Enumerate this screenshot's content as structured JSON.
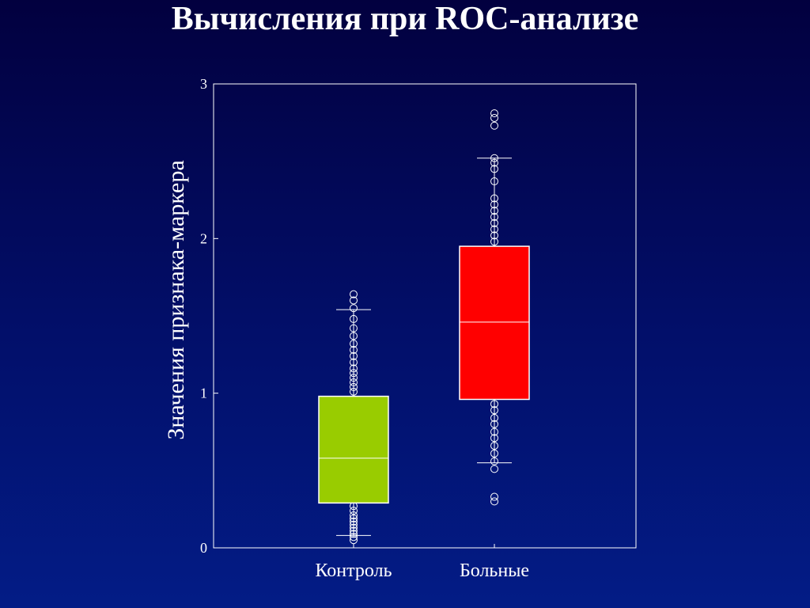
{
  "slide": {
    "title": "Вычисления при ROC-анализе"
  },
  "colors": {
    "background_top": "#02003f",
    "background_bottom": "#031c86",
    "control_box": "#99cc00",
    "patients_box": "#ff0000",
    "lines": "#ffffff"
  },
  "chart_data": {
    "type": "box",
    "title": "",
    "xlabel": "",
    "ylabel": "Значения признака-маркера",
    "ylim": [
      0,
      3
    ],
    "yticks": [
      0,
      1,
      2,
      3
    ],
    "grid": false,
    "categories": [
      "Контроль",
      "Больные"
    ],
    "series": [
      {
        "name": "Контроль",
        "color": "#99cc00",
        "whisker_low": 0.08,
        "q1": 0.29,
        "median": 0.58,
        "q3": 0.98,
        "whisker_high": 1.54,
        "points": [
          0.05,
          0.07,
          0.09,
          0.11,
          0.13,
          0.15,
          0.17,
          0.19,
          0.21,
          0.24,
          0.27,
          1.01,
          1.04,
          1.07,
          1.1,
          1.13,
          1.16,
          1.2,
          1.24,
          1.28,
          1.32,
          1.37,
          1.42,
          1.48,
          1.55,
          1.6,
          1.64
        ]
      },
      {
        "name": "Больные",
        "color": "#ff0000",
        "whisker_low": 0.55,
        "q1": 0.96,
        "median": 1.46,
        "q3": 1.95,
        "whisker_high": 2.52,
        "points": [
          0.3,
          0.33,
          0.51,
          0.56,
          0.61,
          0.66,
          0.71,
          0.75,
          0.8,
          0.84,
          0.89,
          0.93,
          1.98,
          2.02,
          2.06,
          2.1,
          2.14,
          2.18,
          2.22,
          2.26,
          2.37,
          2.45,
          2.49,
          2.52,
          2.73,
          2.78,
          2.81
        ]
      }
    ]
  }
}
